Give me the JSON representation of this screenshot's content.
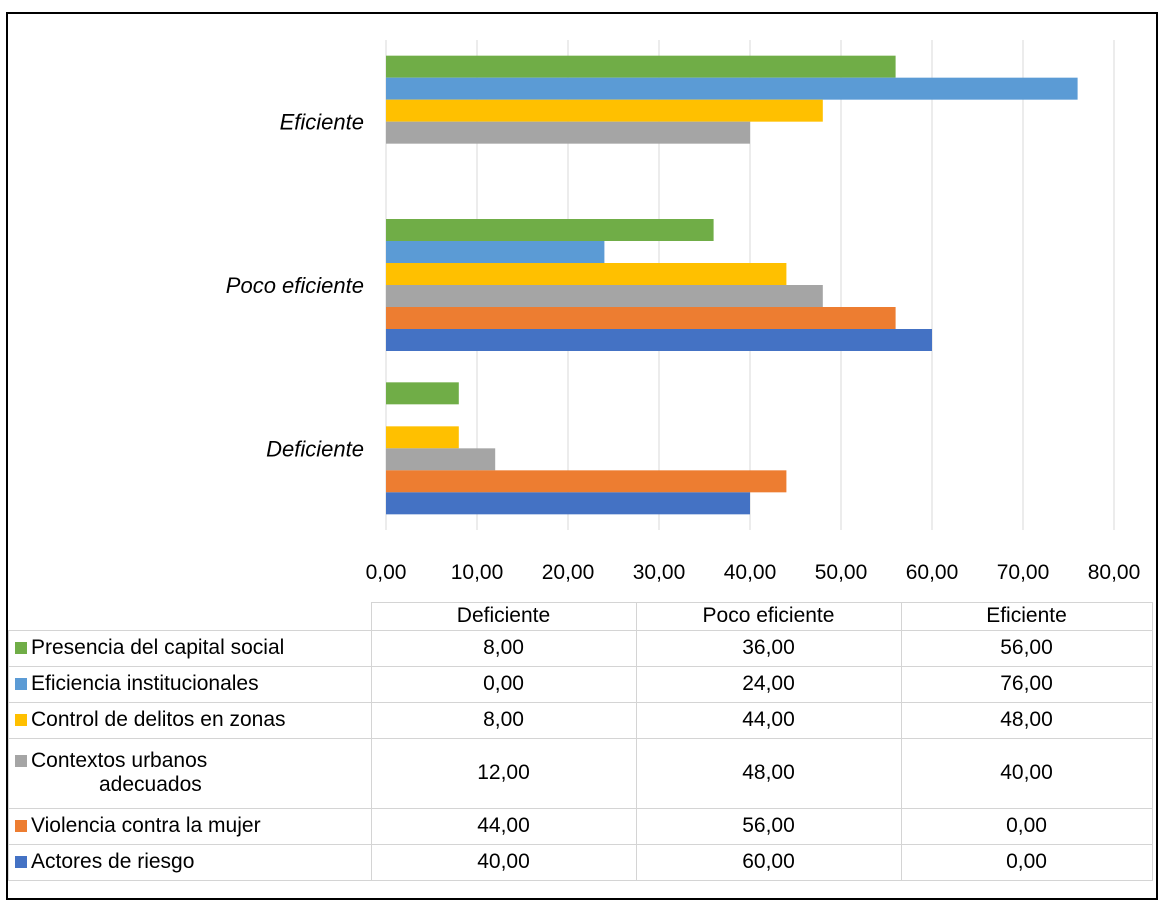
{
  "chart_data": {
    "type": "bar",
    "orientation": "horizontal",
    "categories": [
      "Deficiente",
      "Poco eficiente",
      "Eficiente"
    ],
    "xlim": [
      0,
      80
    ],
    "x_ticks": [
      "0,00",
      "10,00",
      "20,00",
      "30,00",
      "40,00",
      "50,00",
      "60,00",
      "70,00",
      "80,00"
    ],
    "grid": true,
    "series": [
      {
        "name": "Presencia del capital social",
        "color": "#70ad47",
        "values": [
          8,
          36,
          56
        ],
        "labels": [
          "8,00",
          "36,00",
          "56,00"
        ]
      },
      {
        "name": "Eficiencia institucionales",
        "color": "#5b9bd5",
        "values": [
          0,
          24,
          76
        ],
        "labels": [
          "0,00",
          "24,00",
          "76,00"
        ]
      },
      {
        "name": "Control de delitos en zonas",
        "color": "#ffc000",
        "values": [
          8,
          44,
          48
        ],
        "labels": [
          "8,00",
          "44,00",
          "48,00"
        ]
      },
      {
        "name": "Contextos urbanos adecuados",
        "name_line1": "Contextos urbanos",
        "name_line2": "adecuados",
        "color": "#a5a5a5",
        "values": [
          12,
          48,
          40
        ],
        "labels": [
          "12,00",
          "48,00",
          "40,00"
        ]
      },
      {
        "name": "Violencia contra la mujer",
        "color": "#ed7d31",
        "values": [
          44,
          56,
          0
        ],
        "labels": [
          "44,00",
          "56,00",
          "0,00"
        ]
      },
      {
        "name": "Actores de riesgo",
        "color": "#4472c4",
        "values": [
          40,
          60,
          0
        ],
        "labels": [
          "40,00",
          "60,00",
          "0,00"
        ]
      }
    ]
  }
}
